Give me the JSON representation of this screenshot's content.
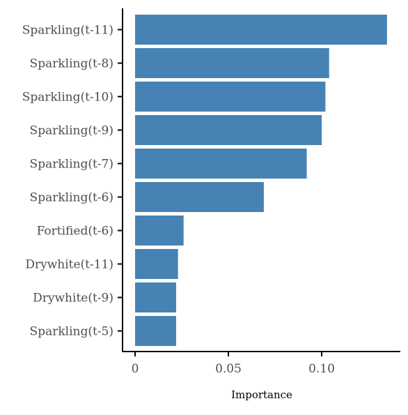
{
  "chart_data": {
    "type": "bar",
    "orientation": "horizontal",
    "title": "",
    "xlabel": "Importance",
    "ylabel": "",
    "categories": [
      "Sparkling(t-11)",
      "Sparkling(t-8)",
      "Sparkling(t-10)",
      "Sparkling(t-9)",
      "Sparkling(t-7)",
      "Sparkling(t-6)",
      "Fortified(t-6)",
      "Drywhite(t-11)",
      "Drywhite(t-9)",
      "Sparkling(t-5)"
    ],
    "values": [
      0.135,
      0.104,
      0.102,
      0.1,
      0.092,
      0.069,
      0.026,
      0.023,
      0.022,
      0.022
    ],
    "xlim": [
      -0.0065,
      0.142
    ],
    "xticks": [
      0,
      0.05,
      0.1
    ],
    "xtick_labels": [
      "0",
      "0.05",
      "0.10"
    ],
    "bar_color": "#4682b4",
    "grid": false,
    "legend": "none"
  }
}
